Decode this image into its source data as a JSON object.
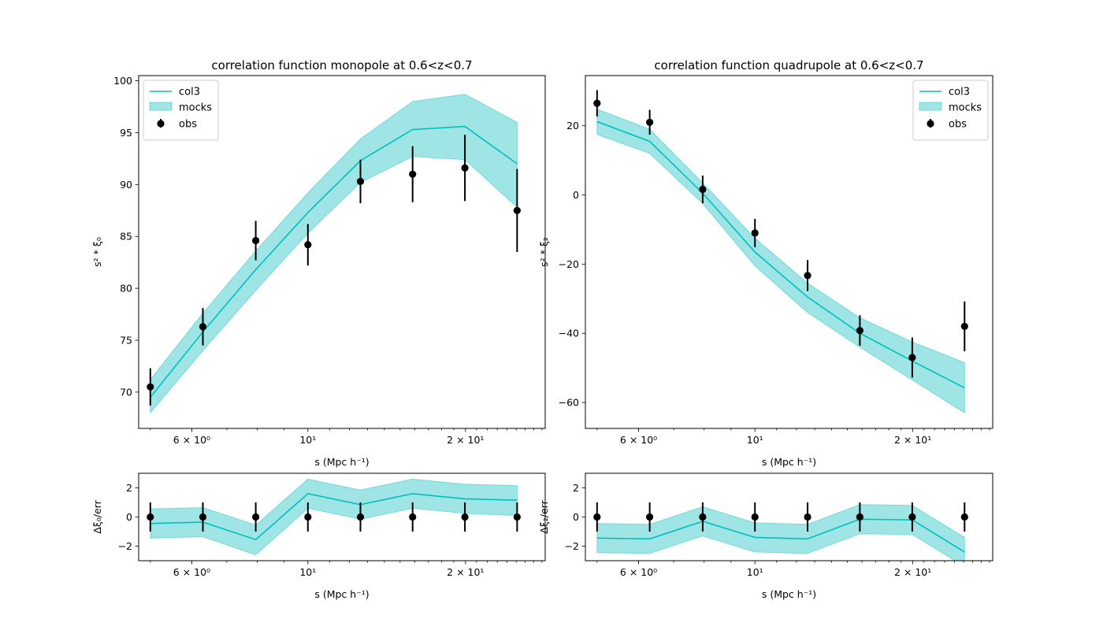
{
  "colors": {
    "model_line": "#00bfbf",
    "mock_band": "#40cccc",
    "obs": "#000000"
  },
  "chart_data": [
    {
      "id": "monopole",
      "type": "line",
      "title": "correlation function monopole at 0.6<z<0.7",
      "xlabel": "s (Mpc h⁻¹)",
      "ylabel": "s² * ξ₀",
      "xscale": "log",
      "xlim": [
        4.75,
        28.4
      ],
      "ylim": [
        66.5,
        100.5
      ],
      "xticks": [
        {
          "value": 6,
          "label": "6 × 10⁰"
        },
        {
          "value": 10,
          "label": "10¹"
        },
        {
          "value": 20,
          "label": "2 × 10¹"
        }
      ],
      "yticks": [
        70,
        75,
        80,
        85,
        90,
        95,
        100
      ],
      "legend": {
        "position": "upper left",
        "entries": [
          "col3",
          "mocks",
          "obs"
        ]
      },
      "x": [
        5.0,
        6.3,
        7.95,
        10.0,
        12.6,
        15.85,
        19.95,
        25.1
      ],
      "series": [
        {
          "name": "col3",
          "kind": "line",
          "values": [
            69.5,
            75.8,
            81.8,
            87.3,
            92.3,
            95.3,
            95.6,
            92.0
          ]
        },
        {
          "name": "mocks",
          "kind": "band",
          "lower": [
            68.0,
            74.0,
            79.8,
            85.3,
            90.2,
            92.7,
            92.4,
            87.8
          ],
          "upper": [
            71.2,
            77.6,
            83.6,
            89.2,
            94.4,
            98.0,
            98.7,
            96.0
          ]
        },
        {
          "name": "obs",
          "kind": "errorbar",
          "values": [
            70.5,
            76.3,
            84.6,
            84.2,
            90.3,
            91.0,
            91.6,
            87.5
          ],
          "errors": [
            1.8,
            1.8,
            1.9,
            2.0,
            2.1,
            2.7,
            3.2,
            4.0
          ]
        }
      ]
    },
    {
      "id": "quadrupole",
      "type": "line",
      "title": "correlation function quadrupole at 0.6<z<0.7",
      "xlabel": "s (Mpc h⁻¹)",
      "ylabel": "s² * ξ₂",
      "xscale": "log",
      "xlim": [
        4.75,
        28.4
      ],
      "ylim": [
        -67.5,
        34.5
      ],
      "xticks": [
        {
          "value": 6,
          "label": "6 × 10⁰"
        },
        {
          "value": 10,
          "label": "10¹"
        },
        {
          "value": 20,
          "label": "2 × 10¹"
        }
      ],
      "yticks": [
        -60,
        -40,
        -20,
        0,
        20
      ],
      "legend": {
        "position": "upper right",
        "entries": [
          "col3",
          "mocks",
          "obs"
        ]
      },
      "x": [
        5.0,
        6.3,
        7.95,
        10.0,
        12.6,
        15.85,
        19.95,
        25.1
      ],
      "series": [
        {
          "name": "col3",
          "kind": "line",
          "values": [
            21.2,
            15.5,
            0.5,
            -16.5,
            -29.5,
            -40.0,
            -48.0,
            -55.8
          ]
        },
        {
          "name": "mocks",
          "kind": "band",
          "lower": [
            17.5,
            12.0,
            -2.5,
            -20.5,
            -34.0,
            -44.0,
            -53.5,
            -63.0
          ],
          "upper": [
            24.8,
            19.0,
            3.5,
            -12.5,
            -25.5,
            -35.5,
            -42.5,
            -48.5
          ]
        },
        {
          "name": "obs",
          "kind": "errorbar",
          "values": [
            26.5,
            21.0,
            1.6,
            -11.0,
            -23.3,
            -39.2,
            -47.0,
            -38.0
          ],
          "errors": [
            3.8,
            3.6,
            4.0,
            4.1,
            4.5,
            4.4,
            5.8,
            7.2
          ]
        }
      ]
    },
    {
      "id": "monopole-residual",
      "type": "line",
      "xlabel": "s (Mpc h⁻¹)",
      "ylabel": "Δξ₀/err",
      "xscale": "log",
      "xlim": [
        4.75,
        28.4
      ],
      "ylim": [
        -3.0,
        3.0
      ],
      "xticks": [
        {
          "value": 6,
          "label": "6 × 10⁰"
        },
        {
          "value": 10,
          "label": "10¹"
        },
        {
          "value": 20,
          "label": "2 × 10¹"
        }
      ],
      "yticks": [
        -2,
        0,
        2
      ],
      "x": [
        5.0,
        6.3,
        7.95,
        10.0,
        12.6,
        15.85,
        19.95,
        25.1
      ],
      "series": [
        {
          "name": "col3",
          "kind": "line",
          "values": [
            -0.45,
            -0.35,
            -1.55,
            1.6,
            0.85,
            1.6,
            1.25,
            1.15
          ]
        },
        {
          "name": "mocks",
          "kind": "band",
          "lower": [
            -1.45,
            -1.35,
            -2.6,
            0.6,
            -0.15,
            0.6,
            0.25,
            0.1
          ],
          "upper": [
            0.55,
            0.65,
            -0.55,
            2.6,
            1.85,
            2.6,
            2.25,
            2.15
          ]
        },
        {
          "name": "obs",
          "kind": "errorbar",
          "values": [
            0,
            0,
            0,
            0,
            0,
            0,
            0,
            0
          ],
          "errors": [
            1,
            1,
            1,
            1,
            1,
            1,
            1,
            1
          ]
        }
      ]
    },
    {
      "id": "quadrupole-residual",
      "type": "line",
      "xlabel": "s (Mpc h⁻¹)",
      "ylabel": "Δξ₂/err",
      "xscale": "log",
      "xlim": [
        4.75,
        28.4
      ],
      "ylim": [
        -3.0,
        3.0
      ],
      "xticks": [
        {
          "value": 6,
          "label": "6 × 10⁰"
        },
        {
          "value": 10,
          "label": "10¹"
        },
        {
          "value": 20,
          "label": "2 × 10¹"
        }
      ],
      "yticks": [
        -2,
        0,
        2
      ],
      "x": [
        5.0,
        6.3,
        7.95,
        10.0,
        12.6,
        15.85,
        19.95,
        25.1
      ],
      "series": [
        {
          "name": "col3",
          "kind": "line",
          "values": [
            -1.45,
            -1.5,
            -0.3,
            -1.4,
            -1.5,
            -0.15,
            -0.2,
            -2.4
          ]
        },
        {
          "name": "mocks",
          "kind": "band",
          "lower": [
            -2.45,
            -2.5,
            -1.3,
            -2.4,
            -2.5,
            -1.15,
            -1.2,
            -3.4
          ],
          "upper": [
            -0.45,
            -0.5,
            0.7,
            -0.4,
            -0.5,
            0.85,
            0.8,
            -1.4
          ]
        },
        {
          "name": "obs",
          "kind": "errorbar",
          "values": [
            0,
            0,
            0,
            0,
            0,
            0,
            0,
            0
          ],
          "errors": [
            1,
            1,
            1,
            1,
            1,
            1,
            1,
            1
          ]
        }
      ]
    }
  ]
}
